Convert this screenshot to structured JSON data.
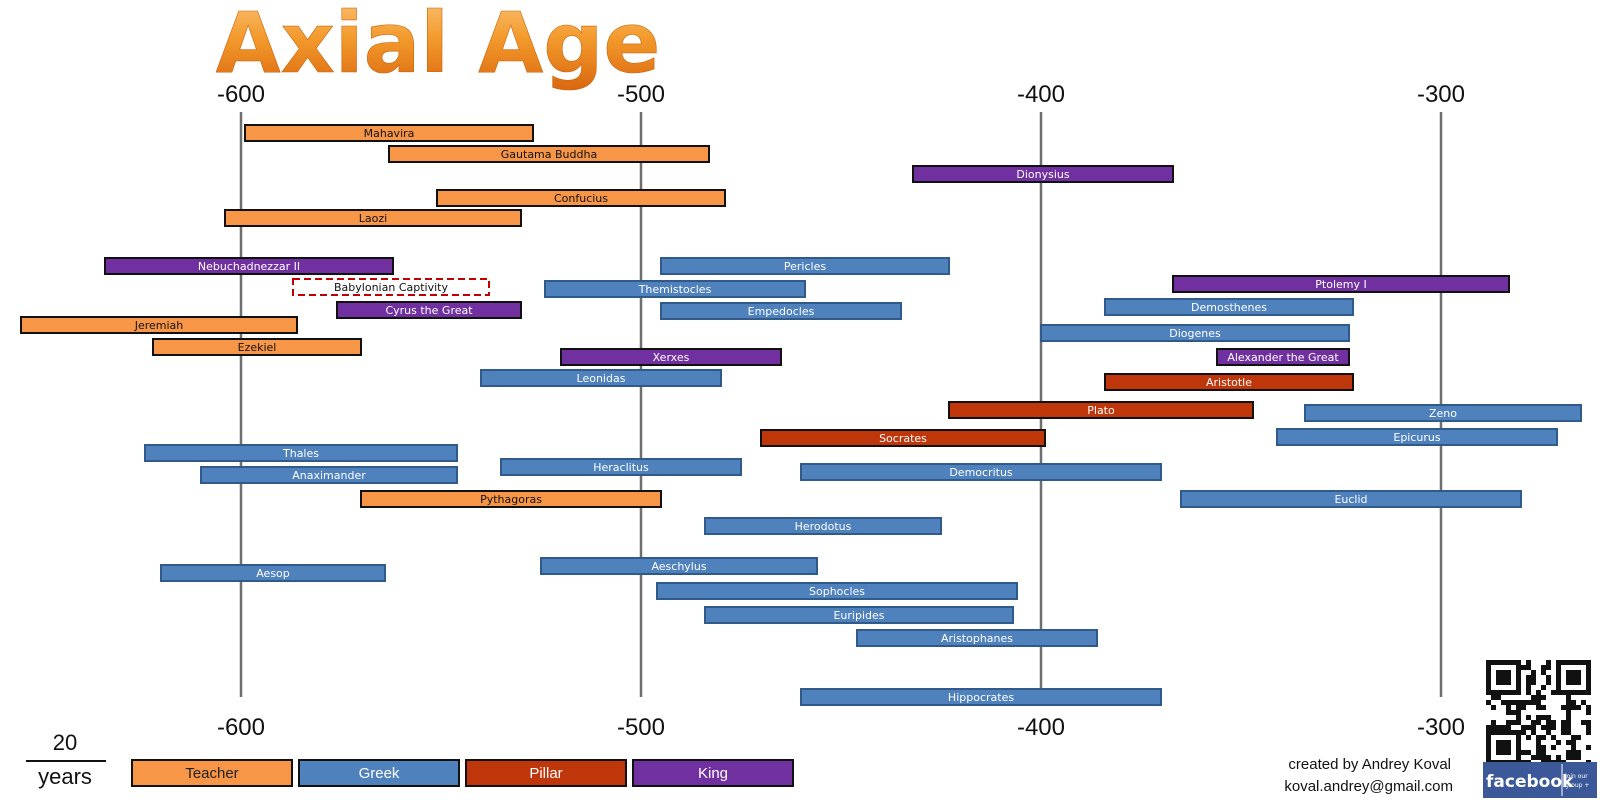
{
  "title": "Axial Age",
  "chart_data": {
    "type": "timeline",
    "x_ticks": [
      "-600",
      "-500",
      "-400",
      "-300"
    ],
    "xlim": [
      -655,
      -259
    ],
    "legend": [
      {
        "name": "Teacher",
        "color": "#F79646"
      },
      {
        "name": "Greek",
        "color": "#4F81BD"
      },
      {
        "name": "Pillar",
        "color": "#C0360B"
      },
      {
        "name": "King",
        "color": "#7030A0"
      }
    ],
    "bars": [
      {
        "name": "Mahavira",
        "start": -599,
        "end": -527,
        "category": "Teacher"
      },
      {
        "name": "Gautama Buddha",
        "start": -563,
        "end": -483,
        "category": "Teacher"
      },
      {
        "name": "Dionysius",
        "start": -432,
        "end": -367,
        "category": "King"
      },
      {
        "name": "Confucius",
        "start": -551,
        "end": -479,
        "category": "Teacher"
      },
      {
        "name": "Laozi",
        "start": -604,
        "end": -530,
        "category": "Teacher"
      },
      {
        "name": "Nebuchadnezzar  II",
        "start": -634,
        "end": -562,
        "category": "King"
      },
      {
        "name": "Babylonian Captivity",
        "start": -587,
        "end": -538,
        "category": "Event"
      },
      {
        "name": "Cyrus the Great",
        "start": -576,
        "end": -530,
        "category": "King"
      },
      {
        "name": "Jeremiah",
        "start": -655,
        "end": -586,
        "category": "Teacher"
      },
      {
        "name": "Ezekiel",
        "start": -622,
        "end": -570,
        "category": "Teacher"
      },
      {
        "name": "Pericles",
        "start": -495,
        "end": -423,
        "category": "Greek"
      },
      {
        "name": "Themistocles",
        "start": -524,
        "end": -459,
        "category": "Greek"
      },
      {
        "name": "Empedocles",
        "start": -495,
        "end": -435,
        "category": "Greek"
      },
      {
        "name": "Xerxes",
        "start": -520,
        "end": -465,
        "category": "King"
      },
      {
        "name": "Leonidas",
        "start": -540,
        "end": -480,
        "category": "Greek"
      },
      {
        "name": "Ptolemy I",
        "start": -367,
        "end": -283,
        "category": "King"
      },
      {
        "name": "Demosthenes",
        "start": -384,
        "end": -322,
        "category": "Greek"
      },
      {
        "name": "Diogenes",
        "start": -400,
        "end": -323,
        "category": "Greek"
      },
      {
        "name": "Alexander the Great",
        "start": -356,
        "end": -323,
        "category": "King"
      },
      {
        "name": "Aristotle",
        "start": -384,
        "end": -322,
        "category": "Pillar"
      },
      {
        "name": "Plato",
        "start": -423,
        "end": -347,
        "category": "Pillar"
      },
      {
        "name": "Zeno",
        "start": -334,
        "end": -265,
        "category": "Greek"
      },
      {
        "name": "Socrates",
        "start": -470,
        "end": -399,
        "category": "Pillar"
      },
      {
        "name": "Epicurus",
        "start": -341,
        "end": -271,
        "category": "Greek"
      },
      {
        "name": "Thales",
        "start": -624,
        "end": -546,
        "category": "Greek"
      },
      {
        "name": "Anaximander",
        "start": -610,
        "end": -546,
        "category": "Greek"
      },
      {
        "name": "Heraclitus",
        "start": -535,
        "end": -475,
        "category": "Greek"
      },
      {
        "name": "Democritus",
        "start": -460,
        "end": -370,
        "category": "Greek"
      },
      {
        "name": "Pythagoras",
        "start": -570,
        "end": -495,
        "category": "Teacher"
      },
      {
        "name": "Euclid",
        "start": -365,
        "end": -280,
        "category": "Greek"
      },
      {
        "name": "Herodotus",
        "start": -484,
        "end": -425,
        "category": "Greek"
      },
      {
        "name": "Aesop",
        "start": -620,
        "end": -564,
        "category": "Greek"
      },
      {
        "name": "Aeschylus",
        "start": -525,
        "end": -456,
        "category": "Greek"
      },
      {
        "name": "Sophocles",
        "start": -496,
        "end": -406,
        "category": "Greek"
      },
      {
        "name": "Euripides",
        "start": -484,
        "end": -407,
        "category": "Greek"
      },
      {
        "name": "Aristophanes",
        "start": -446,
        "end": -386,
        "category": "Greek"
      },
      {
        "name": "Hippocrates",
        "start": -460,
        "end": -370,
        "category": "Greek"
      }
    ],
    "scale": {
      "value": "20",
      "unit": "years"
    }
  },
  "credit": {
    "line1": "created by Andrey Koval",
    "line2": "koval.andrey@gmail.com"
  },
  "facebook": {
    "label": "facebook",
    "side_text_1": "join our",
    "side_text_2": "group +"
  }
}
